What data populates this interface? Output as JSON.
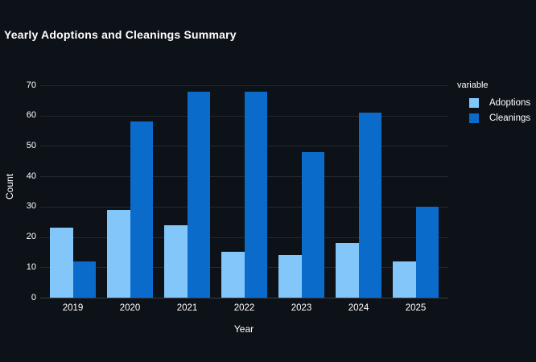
{
  "chart_data": {
    "type": "bar",
    "title": "Yearly Adoptions and Cleanings Summary",
    "categories": [
      "2019",
      "2020",
      "2021",
      "2022",
      "2023",
      "2024",
      "2025"
    ],
    "series": [
      {
        "name": "Adoptions",
        "color": "#82C6FA",
        "values": [
          23,
          29,
          24,
          15,
          14,
          18,
          12
        ]
      },
      {
        "name": "Cleanings",
        "color": "#0B6BCA",
        "values": [
          12,
          58,
          68,
          68,
          48,
          61,
          30
        ]
      }
    ],
    "xlabel": "Year",
    "ylabel": "Count",
    "ylim": [
      0,
      70
    ],
    "yticks": [
      0,
      10,
      20,
      30,
      40,
      50,
      60,
      70
    ],
    "legend_title": "variable",
    "legend_position": "right",
    "grid": "horizontal",
    "background": "#0d1118",
    "gridline_color": "#24272e",
    "axis_line_color": "#3a3f47",
    "text_color": "#ffffff"
  }
}
